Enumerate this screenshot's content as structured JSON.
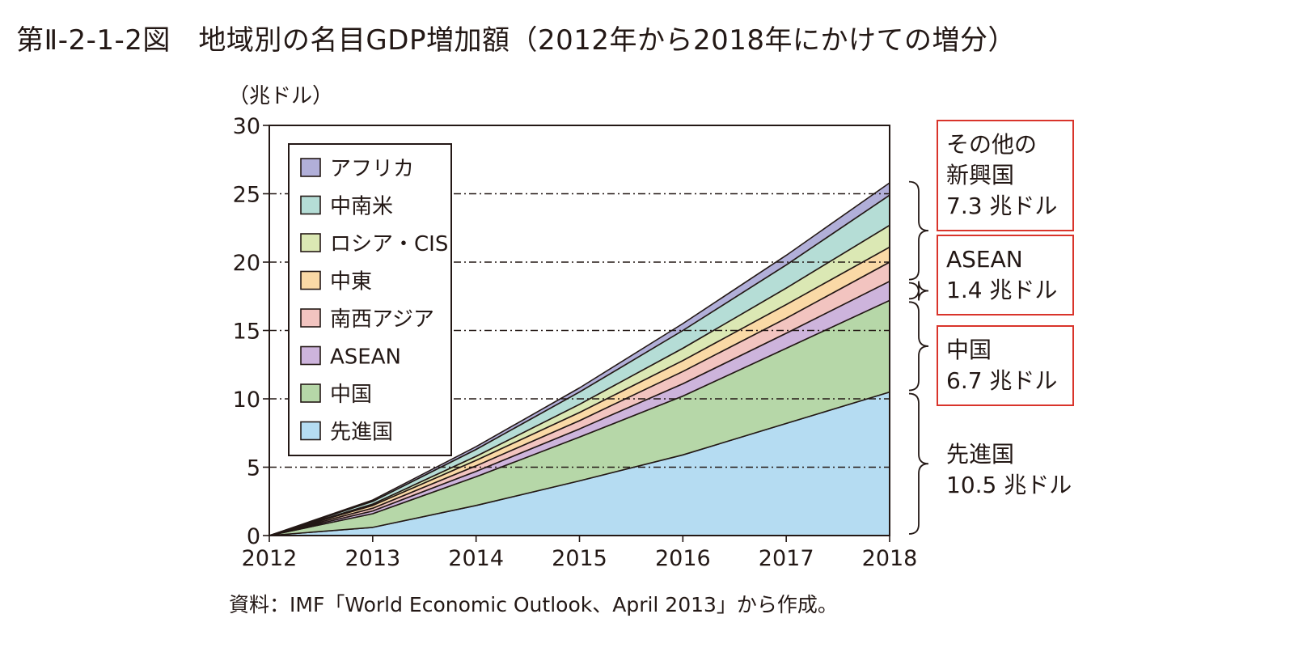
{
  "title": "第Ⅱ-2-1-2図　地域別の名目GDP増加額（2012年から2018年にかけての増分）",
  "source": "資料：IMF「World Economic Outlook、April 2013」から作成。",
  "chart_data": {
    "type": "area",
    "stacked": true,
    "unit_label": "（兆ドル）",
    "x": [
      2012,
      2013,
      2014,
      2015,
      2016,
      2017,
      2018
    ],
    "ylim": [
      0,
      30
    ],
    "yticks": [
      0,
      5,
      10,
      15,
      20,
      25,
      30
    ],
    "grid": "dashed horizontal lines at 5, 10, 15, 20, 25",
    "legend_position": "top-left",
    "series": [
      {
        "name": "先進国",
        "color": "#b5dcf2",
        "values": [
          0,
          0.6,
          2.2,
          4.0,
          5.9,
          8.2,
          10.5
        ]
      },
      {
        "name": "中国",
        "color": "#b6d7a8",
        "values": [
          0,
          1.0,
          2.1,
          3.2,
          4.3,
          5.5,
          6.7
        ]
      },
      {
        "name": "ASEAN",
        "color": "#cdb4dc",
        "values": [
          0,
          0.2,
          0.4,
          0.6,
          0.9,
          1.1,
          1.4
        ]
      },
      {
        "name": "南西アジア",
        "color": "#f2c4c0",
        "values": [
          0,
          0.2,
          0.4,
          0.6,
          0.9,
          1.1,
          1.4
        ]
      },
      {
        "name": "中東",
        "color": "#fad9a6",
        "values": [
          0,
          0.2,
          0.4,
          0.6,
          0.8,
          1.0,
          1.1
        ]
      },
      {
        "name": "ロシア・CIS",
        "color": "#dbe8b4",
        "values": [
          0,
          0.1,
          0.3,
          0.6,
          0.9,
          1.2,
          1.6
        ]
      },
      {
        "name": "中南米",
        "color": "#b5ddd6",
        "values": [
          0,
          0.2,
          0.5,
          0.9,
          1.3,
          1.7,
          2.2
        ]
      },
      {
        "name": "アフリカ",
        "color": "#b1afd9",
        "values": [
          0,
          0.1,
          0.2,
          0.3,
          0.5,
          0.7,
          0.9
        ]
      }
    ],
    "annotations": [
      {
        "id": "other",
        "lines": [
          "その他の",
          "新興国",
          "7.3 兆ドル"
        ],
        "from": 18.6,
        "to": 26.0,
        "boxed": true
      },
      {
        "id": "asean",
        "lines": [
          "ASEAN",
          "1.4 兆ドル"
        ],
        "from": 17.2,
        "to": 18.6,
        "boxed": true
      },
      {
        "id": "china",
        "lines": [
          "中国",
          "6.7 兆ドル"
        ],
        "from": 10.5,
        "to": 17.2,
        "boxed": true
      },
      {
        "id": "advanced",
        "lines": [
          "先進国",
          "10.5 兆ドル"
        ],
        "from": 0,
        "to": 10.5,
        "boxed": false
      }
    ]
  }
}
